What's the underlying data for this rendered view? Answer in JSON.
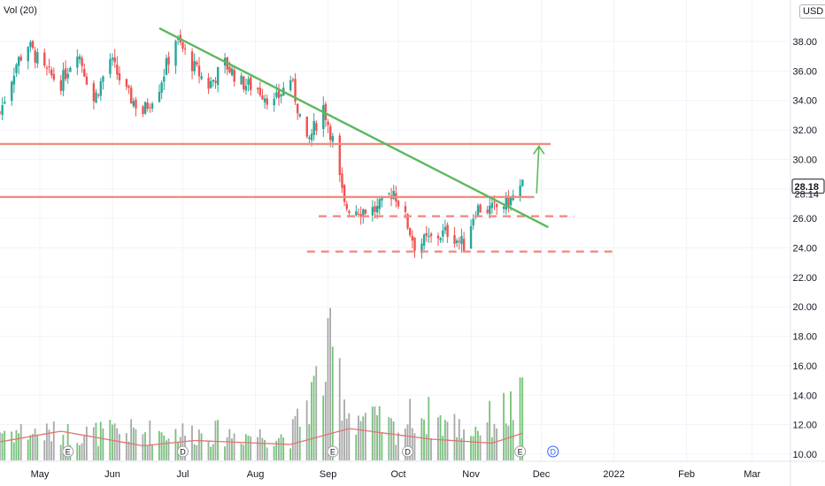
{
  "indicator_label": "Vol (20)",
  "currency": "USD",
  "colors": {
    "up": "#26a69a",
    "down": "#ef5350",
    "vol_up": "#66bb6a",
    "vol_down": "#9e9e9e",
    "vol_ma": "#e57373",
    "trendline": "#5cb85c",
    "level": "#f28b82",
    "grid": "#f0f3fa",
    "axis_text": "#131722",
    "last_price_bg": "#ffffff",
    "last_price_text": "#131722"
  },
  "chart_data": {
    "type": "candlestick",
    "x_ticks": [
      "May",
      "Jun",
      "Jul",
      "Aug",
      "Sep",
      "Oct",
      "Nov",
      "Dec",
      "2022",
      "Feb",
      "Mar"
    ],
    "y_ticks": [
      "38.00",
      "36.00",
      "34.00",
      "32.00",
      "30.00",
      "28.00",
      "26.00",
      "24.00",
      "22.00",
      "20.00",
      "18.00",
      "16.00",
      "14.00",
      "12.00",
      "10.00"
    ],
    "ylim": [
      9.6,
      40.0
    ],
    "last_price": "28.18",
    "prev_close": "28.14",
    "price_path": [
      {
        "date": "2021-04-14",
        "price": 33.2
      },
      {
        "date": "2021-04-21",
        "price": 36.5
      },
      {
        "date": "2021-04-26",
        "price": 37.8
      },
      {
        "date": "2021-05-03",
        "price": 36.0
      },
      {
        "date": "2021-05-10",
        "price": 35.2
      },
      {
        "date": "2021-05-17",
        "price": 37.5
      },
      {
        "date": "2021-05-24",
        "price": 34.0
      },
      {
        "date": "2021-05-31",
        "price": 36.8
      },
      {
        "date": "2021-06-07",
        "price": 34.5
      },
      {
        "date": "2021-06-14",
        "price": 33.2
      },
      {
        "date": "2021-06-21",
        "price": 35.0
      },
      {
        "date": "2021-06-28",
        "price": 38.2
      },
      {
        "date": "2021-07-06",
        "price": 36.2
      },
      {
        "date": "2021-07-12",
        "price": 35.0
      },
      {
        "date": "2021-07-19",
        "price": 36.5
      },
      {
        "date": "2021-07-26",
        "price": 35.2
      },
      {
        "date": "2021-08-02",
        "price": 34.8
      },
      {
        "date": "2021-08-09",
        "price": 33.8
      },
      {
        "date": "2021-08-16",
        "price": 35.5
      },
      {
        "date": "2021-08-23",
        "price": 31.0
      },
      {
        "date": "2021-08-30",
        "price": 33.6
      },
      {
        "date": "2021-09-03",
        "price": 31.3
      },
      {
        "date": "2021-09-08",
        "price": 26.8
      },
      {
        "date": "2021-09-15",
        "price": 26.6
      },
      {
        "date": "2021-09-22",
        "price": 26.6
      },
      {
        "date": "2021-09-29",
        "price": 27.9
      },
      {
        "date": "2021-10-04",
        "price": 26.0
      },
      {
        "date": "2021-10-08",
        "price": 24.2
      },
      {
        "date": "2021-10-15",
        "price": 24.6
      },
      {
        "date": "2021-10-22",
        "price": 25.1
      },
      {
        "date": "2021-10-29",
        "price": 24.2
      },
      {
        "date": "2021-11-03",
        "price": 26.7
      },
      {
        "date": "2021-11-10",
        "price": 26.6
      },
      {
        "date": "2021-11-17",
        "price": 27.1
      },
      {
        "date": "2021-11-23",
        "price": 28.2
      }
    ],
    "volume_path": [
      {
        "date": "2021-04-14",
        "volume": 2.5
      },
      {
        "date": "2021-05-10",
        "volume": 2.2
      },
      {
        "date": "2021-06-14",
        "volume": 2.4
      },
      {
        "date": "2021-07-12",
        "volume": 2.3
      },
      {
        "date": "2021-08-16",
        "volume": 2.0
      },
      {
        "date": "2021-09-03",
        "volume": 9.0
      },
      {
        "date": "2021-09-10",
        "volume": 4.0
      },
      {
        "date": "2021-10-01",
        "volume": 2.5
      },
      {
        "date": "2021-10-08",
        "volume": 4.0
      },
      {
        "date": "2021-11-01",
        "volume": 2.5
      },
      {
        "date": "2021-11-24",
        "volume": 5.0
      }
    ],
    "volume_ma_path": [
      {
        "date": "2021-04-14",
        "volume": 1.4
      },
      {
        "date": "2021-05-10",
        "volume": 2.2
      },
      {
        "date": "2021-06-14",
        "volume": 1.1
      },
      {
        "date": "2021-07-06",
        "volume": 1.5
      },
      {
        "date": "2021-08-16",
        "volume": 1.2
      },
      {
        "date": "2021-09-10",
        "volume": 2.4
      },
      {
        "date": "2021-10-15",
        "volume": 1.6
      },
      {
        "date": "2021-11-10",
        "volume": 1.3
      },
      {
        "date": "2021-11-24",
        "volume": 2.1
      }
    ],
    "drawings": {
      "trendline": {
        "from": {
          "date": "2021-06-21",
          "price": 38.9
        },
        "to": {
          "date": "2021-12-04",
          "price": 25.4
        }
      },
      "resistance_levels": [
        {
          "price": 31.05,
          "from": "2021-04-14",
          "to": "2021-12-05"
        },
        {
          "price": 27.45,
          "from": "2021-04-14",
          "to": "2021-11-28"
        }
      ],
      "support_levels": [
        {
          "price": 26.15,
          "from": "2021-08-28",
          "to": "2021-12-15"
        },
        {
          "price": 23.75,
          "from": "2021-08-23",
          "to": "2022-01-01"
        }
      ],
      "target_arrow": {
        "from": {
          "date": "2021-11-29",
          "price": 27.7
        },
        "to": {
          "date": "2021-11-30",
          "price": 30.9
        }
      }
    },
    "event_markers": [
      {
        "date": "2021-05-13",
        "label": "E"
      },
      {
        "date": "2021-07-01",
        "label": "D"
      },
      {
        "date": "2021-09-03",
        "label": "E"
      },
      {
        "date": "2021-10-05",
        "label": "D"
      },
      {
        "date": "2021-11-22",
        "label": "E"
      },
      {
        "date": "2021-12-06",
        "label": "D",
        "future": true
      }
    ]
  }
}
